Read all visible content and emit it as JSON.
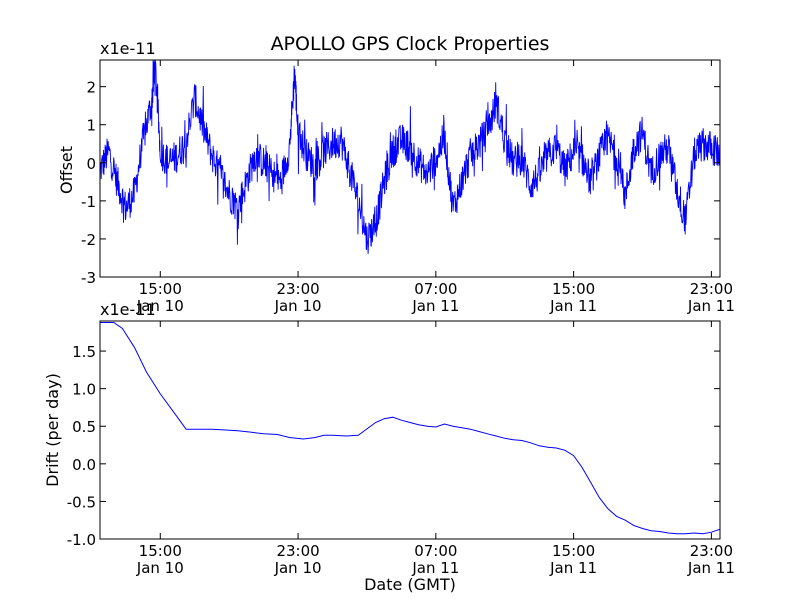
{
  "figure_title": "APOLLO GPS Clock Properties",
  "xlabel": "Date (GMT)",
  "chart_data": [
    {
      "type": "line",
      "panel": "top",
      "title": "APOLLO GPS Clock Properties",
      "ylabel": "Offset",
      "xlabel": "",
      "exponent_label": "x1e-11",
      "series_color": "#0000ff",
      "ylim": [
        -3,
        2.7
      ],
      "yticks": [
        -3,
        -2,
        -1,
        0,
        1,
        2
      ],
      "ytick_labels": [
        "-3",
        "-2",
        "-1",
        "0",
        "1",
        "2"
      ],
      "xlim_hours": [
        11.5,
        47.5
      ],
      "xticks_hours": [
        15,
        23,
        31,
        39,
        47
      ],
      "xtick_labels": [
        [
          "15:00",
          "Jan 10"
        ],
        [
          "23:00",
          "Jan 10"
        ],
        [
          "07:00",
          "Jan 11"
        ],
        [
          "15:00",
          "Jan 11"
        ],
        [
          "23:00",
          "Jan 11"
        ]
      ],
      "series": [
        {
          "name": "Offset",
          "x_hours": [
            11.5,
            12.0,
            12.5,
            13.0,
            13.5,
            14.0,
            14.5,
            14.7,
            15.0,
            15.5,
            16.0,
            16.5,
            17.0,
            17.5,
            18.0,
            18.5,
            19.0,
            19.5,
            20.0,
            20.5,
            21.0,
            21.5,
            22.0,
            22.5,
            22.8,
            23.0,
            23.5,
            24.0,
            24.5,
            25.0,
            25.5,
            26.0,
            26.5,
            27.0,
            27.5,
            28.0,
            28.5,
            29.0,
            29.5,
            30.0,
            30.5,
            31.0,
            31.5,
            32.0,
            32.5,
            33.0,
            33.5,
            34.0,
            34.5,
            35.0,
            35.5,
            36.0,
            36.5,
            37.0,
            37.5,
            38.0,
            38.5,
            39.0,
            39.5,
            40.0,
            40.5,
            41.0,
            41.5,
            42.0,
            42.5,
            43.0,
            43.5,
            44.0,
            44.5,
            45.0,
            45.5,
            46.0,
            46.5,
            47.0,
            47.5
          ],
          "values": [
            -0.2,
            0.3,
            -0.5,
            -1.2,
            -0.8,
            0.6,
            1.6,
            2.6,
            0.3,
            0.0,
            0.2,
            0.6,
            1.7,
            0.9,
            0.2,
            -0.3,
            -0.8,
            -1.2,
            -0.5,
            0.2,
            0.0,
            -0.3,
            -0.5,
            0.4,
            2.4,
            0.8,
            0.2,
            -0.1,
            0.3,
            0.5,
            0.6,
            -0.2,
            -1.0,
            -2.0,
            -1.6,
            -0.5,
            0.3,
            0.6,
            0.4,
            0.0,
            -0.3,
            0.1,
            0.7,
            -1.2,
            -0.5,
            0.2,
            0.5,
            0.8,
            1.6,
            0.6,
            0.0,
            0.1,
            -0.6,
            -0.3,
            0.2,
            0.4,
            -0.2,
            0.3,
            0.1,
            -0.5,
            0.2,
            0.6,
            0.2,
            -0.9,
            0.4,
            0.8,
            -0.3,
            0.2,
            0.4,
            -0.7,
            -1.5,
            0.2,
            0.5,
            0.4,
            0.2
          ]
        }
      ]
    },
    {
      "type": "line",
      "panel": "bottom",
      "title": "",
      "ylabel": "Drift (per day)",
      "xlabel": "Date (GMT)",
      "exponent_label": "x1e-11",
      "series_color": "#0000ff",
      "ylim": [
        -1.0,
        1.9
      ],
      "yticks": [
        -1.0,
        -0.5,
        0.0,
        0.5,
        1.0,
        1.5
      ],
      "ytick_labels": [
        "-1.0",
        "-0.5",
        "0.0",
        "0.5",
        "1.0",
        "1.5"
      ],
      "xlim_hours": [
        11.5,
        47.5
      ],
      "xticks_hours": [
        15,
        23,
        31,
        39,
        47
      ],
      "xtick_labels": [
        [
          "15:00",
          "Jan 10"
        ],
        [
          "23:00",
          "Jan 10"
        ],
        [
          "07:00",
          "Jan 11"
        ],
        [
          "15:00",
          "Jan 11"
        ],
        [
          "23:00",
          "Jan 11"
        ]
      ],
      "series": [
        {
          "name": "Drift",
          "x_hours": [
            11.5,
            12.3,
            12.8,
            13.5,
            14.2,
            15.0,
            15.8,
            16.5,
            17.3,
            18.0,
            18.8,
            19.5,
            20.3,
            21.0,
            21.8,
            22.5,
            23.3,
            24.0,
            24.5,
            25.0,
            25.8,
            26.5,
            27.5,
            28.0,
            28.5,
            29.0,
            29.5,
            30.0,
            30.5,
            31.0,
            31.5,
            32.0,
            32.5,
            33.0,
            33.5,
            34.0,
            34.5,
            35.0,
            35.5,
            36.0,
            36.5,
            37.0,
            37.5,
            38.0,
            38.5,
            39.0,
            39.5,
            40.0,
            40.5,
            41.0,
            41.5,
            42.0,
            42.5,
            43.0,
            43.5,
            44.0,
            44.5,
            45.0,
            45.5,
            46.0,
            46.5,
            47.0,
            47.5
          ],
          "values": [
            1.88,
            1.88,
            1.8,
            1.55,
            1.22,
            0.93,
            0.68,
            0.46,
            0.46,
            0.46,
            0.45,
            0.44,
            0.42,
            0.4,
            0.39,
            0.35,
            0.33,
            0.35,
            0.38,
            0.38,
            0.37,
            0.38,
            0.55,
            0.6,
            0.62,
            0.58,
            0.55,
            0.52,
            0.5,
            0.49,
            0.53,
            0.5,
            0.48,
            0.46,
            0.43,
            0.4,
            0.37,
            0.34,
            0.32,
            0.31,
            0.28,
            0.24,
            0.22,
            0.21,
            0.18,
            0.11,
            -0.05,
            -0.25,
            -0.45,
            -0.6,
            -0.7,
            -0.75,
            -0.82,
            -0.86,
            -0.89,
            -0.9,
            -0.92,
            -0.93,
            -0.93,
            -0.92,
            -0.93,
            -0.91,
            -0.87
          ]
        }
      ]
    }
  ]
}
